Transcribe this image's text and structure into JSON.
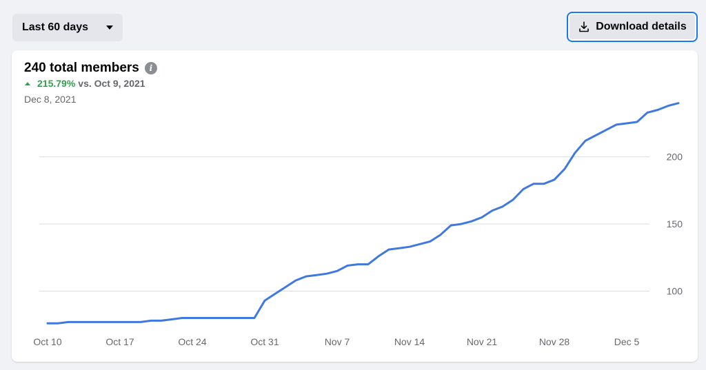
{
  "filter": {
    "range_label": "Last 60 days"
  },
  "toolbar": {
    "download_label": "Download details"
  },
  "summary": {
    "title": "240 total members",
    "change_pct": "215.79%",
    "change_vs": "vs. Oct 9, 2021",
    "date": "Dec 8, 2021"
  },
  "colors": {
    "line": "#4078e2",
    "positive": "#31a24c",
    "accent": "#1877f2",
    "grid": "#dadde1",
    "muted_text": "#65676b"
  },
  "chart_data": {
    "type": "line",
    "title": "240 total members",
    "xlabel": "",
    "ylabel": "",
    "x_ticks": [
      "Oct 10",
      "Oct 17",
      "Oct 24",
      "Oct 31",
      "Nov 7",
      "Nov 14",
      "Nov 21",
      "Nov 28",
      "Dec 5"
    ],
    "y_ticks": [
      100,
      150,
      200
    ],
    "ylim": [
      70,
      245
    ],
    "grid": "horizontal",
    "x_start": "2021-10-10",
    "x_end": "2021-12-08",
    "series": [
      {
        "values": [
          76,
          76,
          77,
          77,
          77,
          77,
          77,
          77,
          77,
          77,
          78,
          78,
          79,
          80,
          80,
          80,
          80,
          80,
          80,
          80,
          80,
          93,
          98,
          103,
          108,
          111,
          112,
          113,
          115,
          119,
          120,
          120,
          126,
          131,
          132,
          133,
          135,
          137,
          142,
          149,
          150,
          152,
          155,
          160,
          163,
          168,
          176,
          180,
          180,
          183,
          191,
          203,
          212,
          216,
          220,
          224,
          225,
          226,
          233,
          235,
          238,
          240
        ]
      }
    ]
  }
}
